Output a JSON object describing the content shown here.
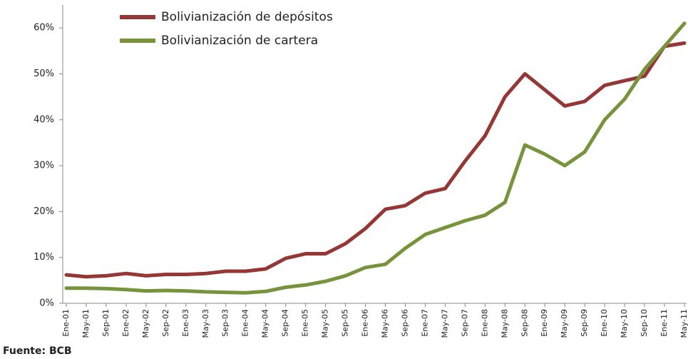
{
  "chart_data": {
    "type": "line",
    "categories": [
      "Ene-01",
      "May-01",
      "Sep-01",
      "Ene-02",
      "May-02",
      "Sep-02",
      "Ene-03",
      "May-03",
      "Sep-03",
      "Ene-04",
      "May-04",
      "Sep-04",
      "Ene-05",
      "May-05",
      "Sep-05",
      "Ene-06",
      "May-06",
      "Sep-06",
      "Ene-07",
      "May-07",
      "Sep-07",
      "Ene-08",
      "May-08",
      "Sep-08",
      "Ene-09",
      "May-09",
      "Sep-09",
      "Ene-10",
      "May-10",
      "Sep-10",
      "Ene-11",
      "May-11"
    ],
    "series": [
      {
        "name": "Bolivianización de depósitos",
        "color": "#953735",
        "values": [
          6.2,
          5.8,
          6.0,
          6.5,
          6.0,
          6.3,
          6.3,
          6.5,
          7.0,
          7.0,
          7.5,
          9.8,
          10.8,
          10.8,
          13.0,
          16.3,
          20.5,
          21.3,
          24.0,
          25.0,
          31.0,
          36.5,
          45.0,
          50.0,
          46.5,
          43.0,
          44.0,
          47.5,
          48.5,
          49.5,
          56.0,
          56.7
        ]
      },
      {
        "name": "Bolivianización de cartera",
        "color": "#77933c",
        "values": [
          3.3,
          3.3,
          3.2,
          3.0,
          2.7,
          2.8,
          2.7,
          2.5,
          2.4,
          2.3,
          2.6,
          3.5,
          4.0,
          4.8,
          6.0,
          7.8,
          8.5,
          12.0,
          15.0,
          16.5,
          18.0,
          19.2,
          22.0,
          34.5,
          32.5,
          30.0,
          33.0,
          40.0,
          44.5,
          51.0,
          56.0,
          61.0
        ]
      }
    ],
    "ylim": [
      0,
      65
    ],
    "yticks": [
      {
        "value": 0,
        "label": "0%"
      },
      {
        "value": 10,
        "label": "10%"
      },
      {
        "value": 20,
        "label": "20%"
      },
      {
        "value": 30,
        "label": "30%"
      },
      {
        "value": 40,
        "label": "40%"
      },
      {
        "value": 50,
        "label": "50%"
      },
      {
        "value": 60,
        "label": "60%"
      }
    ],
    "source": "Fuente: BCB"
  }
}
